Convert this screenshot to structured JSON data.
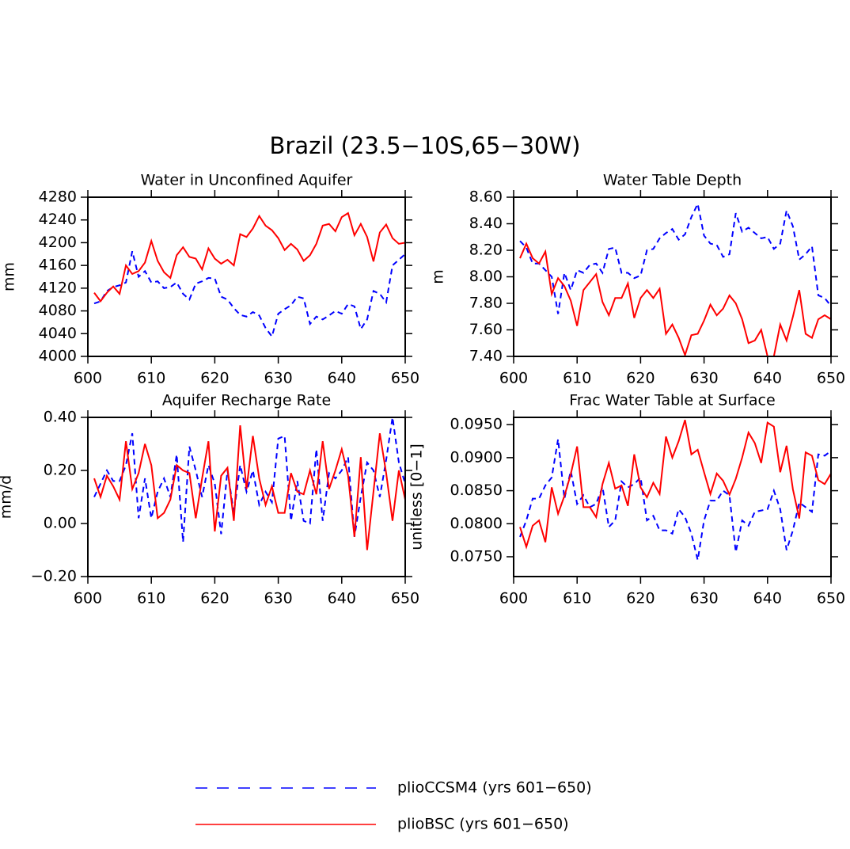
{
  "title": "Brazil (23.5−10S,65−30W)",
  "legend": [
    {
      "name": "plioCCSM4 (yrs 601−650)",
      "color": "#0000ff",
      "dashed": true
    },
    {
      "name": "plioBSC (yrs 601−650)",
      "color": "#ff0000",
      "dashed": false
    }
  ],
  "chart_data": [
    {
      "type": "line",
      "title": "Water in Unconfined Aquifer",
      "ylabel": "mm",
      "x": [
        601,
        602,
        603,
        604,
        605,
        606,
        607,
        608,
        609,
        610,
        611,
        612,
        613,
        614,
        615,
        616,
        617,
        618,
        619,
        620,
        621,
        622,
        623,
        624,
        625,
        626,
        627,
        628,
        629,
        630,
        631,
        632,
        633,
        634,
        635,
        636,
        637,
        638,
        639,
        640,
        641,
        642,
        643,
        644,
        645,
        646,
        647,
        648,
        649,
        650
      ],
      "xlim": [
        600,
        650
      ],
      "xticks": [
        600,
        610,
        620,
        630,
        640,
        650
      ],
      "ylim": [
        4000,
        4280
      ],
      "yticks": [
        4000,
        4040,
        4080,
        4120,
        4160,
        4200,
        4240,
        4280
      ],
      "series": [
        {
          "values": [
            4093,
            4097,
            4115,
            4122,
            4125,
            4130,
            4185,
            4140,
            4150,
            4130,
            4132,
            4120,
            4122,
            4130,
            4110,
            4100,
            4128,
            4132,
            4138,
            4137,
            4105,
            4100,
            4085,
            4073,
            4070,
            4078,
            4072,
            4050,
            4035,
            4075,
            4083,
            4090,
            4105,
            4102,
            4057,
            4070,
            4065,
            4072,
            4080,
            4075,
            4092,
            4088,
            4048,
            4065,
            4115,
            4110,
            4095,
            4160,
            4170,
            4180
          ]
        },
        {
          "values": [
            4112,
            4097,
            4112,
            4123,
            4110,
            4160,
            4145,
            4150,
            4165,
            4203,
            4168,
            4148,
            4138,
            4178,
            4192,
            4175,
            4172,
            4153,
            4190,
            4172,
            4163,
            4170,
            4160,
            4215,
            4210,
            4225,
            4247,
            4230,
            4222,
            4208,
            4187,
            4198,
            4188,
            4168,
            4178,
            4198,
            4230,
            4233,
            4220,
            4245,
            4252,
            4213,
            4233,
            4210,
            4167,
            4218,
            4232,
            4208,
            4198,
            4200
          ]
        }
      ]
    },
    {
      "type": "line",
      "title": "Water Table Depth",
      "ylabel": "m",
      "x": [
        601,
        602,
        603,
        604,
        605,
        606,
        607,
        608,
        609,
        610,
        611,
        612,
        613,
        614,
        615,
        616,
        617,
        618,
        619,
        620,
        621,
        622,
        623,
        624,
        625,
        626,
        627,
        628,
        629,
        630,
        631,
        632,
        633,
        634,
        635,
        636,
        637,
        638,
        639,
        640,
        641,
        642,
        643,
        644,
        645,
        646,
        647,
        648,
        649,
        650
      ],
      "xlim": [
        600,
        650
      ],
      "xticks": [
        600,
        610,
        620,
        630,
        640,
        650
      ],
      "ylim": [
        7.4,
        8.6
      ],
      "yticks": [
        {
          "value": 7.4,
          "label": "7.40"
        },
        {
          "value": 7.6,
          "label": "7.60"
        },
        {
          "value": 7.8,
          "label": "7.80"
        },
        {
          "value": 8.0,
          "label": "8.00"
        },
        {
          "value": 8.2,
          "label": "8.20"
        },
        {
          "value": 8.4,
          "label": "8.40"
        },
        {
          "value": 8.6,
          "label": "8.60"
        }
      ],
      "series": [
        {
          "values": [
            8.27,
            8.22,
            8.1,
            8.1,
            8.05,
            8.0,
            7.72,
            8.03,
            7.9,
            8.05,
            8.03,
            8.09,
            8.1,
            8.03,
            8.21,
            8.22,
            8.03,
            8.03,
            7.99,
            8.01,
            8.2,
            8.21,
            8.29,
            8.33,
            8.36,
            8.28,
            8.32,
            8.45,
            8.55,
            8.31,
            8.25,
            8.24,
            8.15,
            8.17,
            8.48,
            8.34,
            8.37,
            8.33,
            8.29,
            8.3,
            8.21,
            8.25,
            8.5,
            8.38,
            8.13,
            8.17,
            8.23,
            7.86,
            7.84,
            7.78
          ]
        },
        {
          "values": [
            8.14,
            8.25,
            8.14,
            8.1,
            8.19,
            7.87,
            7.99,
            7.93,
            7.82,
            7.63,
            7.9,
            7.96,
            8.02,
            7.81,
            7.71,
            7.84,
            7.84,
            7.95,
            7.69,
            7.84,
            7.9,
            7.84,
            7.91,
            7.57,
            7.64,
            7.54,
            7.41,
            7.56,
            7.57,
            7.67,
            7.79,
            7.71,
            7.76,
            7.86,
            7.8,
            7.68,
            7.5,
            7.52,
            7.6,
            7.4,
            7.4,
            7.64,
            7.52,
            7.7,
            7.9,
            7.57,
            7.54,
            7.68,
            7.71,
            7.68
          ]
        }
      ]
    },
    {
      "type": "line",
      "title": "Aquifer Recharge Rate",
      "ylabel": "mm/d",
      "x": [
        601,
        602,
        603,
        604,
        605,
        606,
        607,
        608,
        609,
        610,
        611,
        612,
        613,
        614,
        615,
        616,
        617,
        618,
        619,
        620,
        621,
        622,
        623,
        624,
        625,
        626,
        627,
        628,
        629,
        630,
        631,
        632,
        633,
        634,
        635,
        636,
        637,
        638,
        639,
        640,
        641,
        642,
        643,
        644,
        645,
        646,
        647,
        648,
        649,
        650
      ],
      "xlim": [
        600,
        650
      ],
      "xticks": [
        600,
        610,
        620,
        630,
        640,
        650
      ],
      "ylim": [
        -0.2,
        0.4
      ],
      "yticks": [
        {
          "value": -0.2,
          "label": "−0.20"
        },
        {
          "value": 0,
          "label": "0.00"
        },
        {
          "value": 0.2,
          "label": "0.20"
        },
        {
          "value": 0.4,
          "label": "0.40"
        }
      ],
      "series": [
        {
          "values": [
            0.1,
            0.15,
            0.2,
            0.16,
            0.16,
            0.22,
            0.34,
            0.02,
            0.17,
            0.02,
            0.12,
            0.17,
            0.1,
            0.26,
            -0.07,
            0.29,
            0.2,
            0.1,
            0.22,
            0.15,
            -0.04,
            0.2,
            0.04,
            0.22,
            0.12,
            0.2,
            0.07,
            0.12,
            0.08,
            0.32,
            0.33,
            0.01,
            0.16,
            0.01,
            0.0,
            0.28,
            0.01,
            0.19,
            0.17,
            0.2,
            0.25,
            -0.05,
            0.1,
            0.23,
            0.2,
            0.1,
            0.24,
            0.4,
            0.23,
            0.15
          ]
        },
        {
          "values": [
            0.17,
            0.1,
            0.18,
            0.14,
            0.09,
            0.31,
            0.13,
            0.19,
            0.3,
            0.22,
            0.02,
            0.04,
            0.09,
            0.22,
            0.2,
            0.19,
            0.02,
            0.17,
            0.31,
            -0.03,
            0.18,
            0.21,
            0.01,
            0.37,
            0.13,
            0.33,
            0.17,
            0.07,
            0.14,
            0.04,
            0.04,
            0.19,
            0.12,
            0.11,
            0.2,
            0.11,
            0.31,
            0.13,
            0.2,
            0.28,
            0.18,
            -0.05,
            0.25,
            -0.1,
            0.12,
            0.34,
            0.19,
            0.01,
            0.2,
            0.09
          ]
        }
      ]
    },
    {
      "type": "line",
      "title": "Frac Water Table at Surface",
      "ylabel": "unitless [0−1]",
      "x": [
        601,
        602,
        603,
        604,
        605,
        606,
        607,
        608,
        609,
        610,
        611,
        612,
        613,
        614,
        615,
        616,
        617,
        618,
        619,
        620,
        621,
        622,
        623,
        624,
        625,
        626,
        627,
        628,
        629,
        630,
        631,
        632,
        633,
        634,
        635,
        636,
        637,
        638,
        639,
        640,
        641,
        642,
        643,
        644,
        645,
        646,
        647,
        648,
        649,
        650
      ],
      "xlim": [
        600,
        650
      ],
      "xticks": [
        600,
        610,
        620,
        630,
        640,
        650
      ],
      "ylim": [
        0.072,
        0.0961
      ],
      "yticks": [
        {
          "value": 0.075,
          "label": "0.0750"
        },
        {
          "value": 0.08,
          "label": "0.0800"
        },
        {
          "value": 0.085,
          "label": "0.0850"
        },
        {
          "value": 0.09,
          "label": "0.0900"
        },
        {
          "value": 0.095,
          "label": "0.0950"
        }
      ],
      "series": [
        {
          "values": [
            0.078,
            0.0805,
            0.0838,
            0.0838,
            0.0858,
            0.087,
            0.0928,
            0.0838,
            0.088,
            0.083,
            0.0843,
            0.0825,
            0.083,
            0.0856,
            0.0795,
            0.0805,
            0.0864,
            0.0855,
            0.086,
            0.087,
            0.0805,
            0.0812,
            0.079,
            0.079,
            0.0785,
            0.0822,
            0.081,
            0.0785,
            0.0745,
            0.0805,
            0.0835,
            0.0835,
            0.085,
            0.0843,
            0.0757,
            0.0805,
            0.0797,
            0.0818,
            0.082,
            0.0822,
            0.085,
            0.0822,
            0.076,
            0.079,
            0.0832,
            0.0825,
            0.0818,
            0.0905,
            0.0903,
            0.091
          ]
        },
        {
          "values": [
            0.0795,
            0.0765,
            0.0797,
            0.0805,
            0.0772,
            0.0855,
            0.0815,
            0.0842,
            0.0875,
            0.0917,
            0.0825,
            0.0825,
            0.081,
            0.086,
            0.0892,
            0.0853,
            0.0858,
            0.0827,
            0.0905,
            0.0855,
            0.084,
            0.0862,
            0.0845,
            0.0932,
            0.09,
            0.0925,
            0.0957,
            0.0905,
            0.0912,
            0.0878,
            0.0845,
            0.0876,
            0.0865,
            0.0844,
            0.0868,
            0.09,
            0.0938,
            0.0922,
            0.0892,
            0.0953,
            0.0947,
            0.0878,
            0.0918,
            0.0852,
            0.0808,
            0.0908,
            0.0903,
            0.0866,
            0.086,
            0.0876
          ]
        }
      ]
    }
  ]
}
